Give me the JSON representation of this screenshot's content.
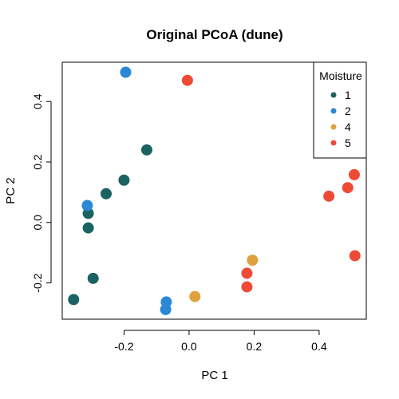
{
  "chart_data": {
    "type": "scatter",
    "title": "Original PCoA (dune)",
    "xlabel": "PC 1",
    "ylabel": "PC 2",
    "xlim": [
      -0.39,
      0.545
    ],
    "ylim": [
      -0.32,
      0.53
    ],
    "xticks": [
      -0.2,
      0.0,
      0.2,
      0.4
    ],
    "yticks": [
      -0.2,
      0.0,
      0.2,
      0.4
    ],
    "xtick_labels": [
      "-0.2",
      "0.0",
      "0.2",
      "0.4"
    ],
    "ytick_labels": [
      "-0.2",
      "0.0",
      "0.2",
      "0.4"
    ],
    "legend": {
      "title": "Moisture",
      "position": "top-right",
      "entries": [
        {
          "label": "1",
          "color": "#1b6262"
        },
        {
          "label": "2",
          "color": "#2b88d6"
        },
        {
          "label": "4",
          "color": "#e0a040"
        },
        {
          "label": "5",
          "color": "#ee4b37"
        }
      ]
    },
    "series": [
      {
        "name": "1",
        "color": "#1b6262",
        "points": [
          {
            "x": -0.13,
            "y": 0.24
          },
          {
            "x": -0.2,
            "y": 0.14
          },
          {
            "x": -0.255,
            "y": 0.095
          },
          {
            "x": -0.31,
            "y": 0.03
          },
          {
            "x": -0.31,
            "y": -0.018
          },
          {
            "x": -0.295,
            "y": -0.185
          },
          {
            "x": -0.355,
            "y": -0.255
          }
        ]
      },
      {
        "name": "2",
        "color": "#2b88d6",
        "points": [
          {
            "x": -0.195,
            "y": 0.497
          },
          {
            "x": -0.313,
            "y": 0.056
          },
          {
            "x": -0.07,
            "y": -0.263
          },
          {
            "x": -0.072,
            "y": -0.288
          }
        ]
      },
      {
        "name": "4",
        "color": "#e0a040",
        "points": [
          {
            "x": 0.195,
            "y": -0.125
          },
          {
            "x": 0.018,
            "y": -0.245
          }
        ]
      },
      {
        "name": "5",
        "color": "#ee4b37",
        "points": [
          {
            "x": -0.005,
            "y": 0.47
          },
          {
            "x": 0.508,
            "y": 0.158
          },
          {
            "x": 0.488,
            "y": 0.115
          },
          {
            "x": 0.43,
            "y": 0.087
          },
          {
            "x": 0.51,
            "y": -0.11
          },
          {
            "x": 0.178,
            "y": -0.168
          },
          {
            "x": 0.178,
            "y": -0.213
          }
        ]
      }
    ]
  }
}
